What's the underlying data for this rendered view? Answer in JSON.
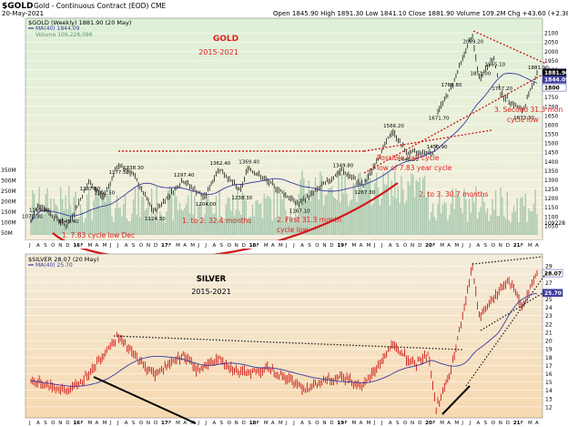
{
  "header": {
    "symbol": "$GOLD",
    "title_rest": "Gold - Continuous Contract (EOD)  CME",
    "date": "20-May-2021",
    "ohlc": "Open 1845.90  High 1891.30  Low 1841.10  Close 1881.90  Volume 109.2M  Chg +43.60 (+2.38%)",
    "legend_main": "$GOLD (Weekly) 1881.90 (20 May)",
    "legend_ma": "MA(40) 1844.09",
    "legend_vol": "Volume 109,228,096",
    "legend_silver": "$SILVER 28.07 (20 May)",
    "legend_silver_ma": "MA(40) 25.70"
  },
  "colors": {
    "gold_bg_top": "#e0efd8",
    "gold_bg_bottom": "#f6eedc",
    "silver_bg_top": "#f2ecd9",
    "silver_bg_bottom": "#f8d9b0",
    "price": "#000000",
    "ma": "#3a3aa0",
    "volume": "#a9c9b0",
    "annotation": "#e02020",
    "trend": "#cc0000"
  },
  "chart_data": [
    {
      "type": "line",
      "name": "gold_weekly",
      "title": "GOLD",
      "subtitle": "2015-2021",
      "ylim": [
        1000,
        2150
      ],
      "y_ticks": [
        1050,
        1100,
        1150,
        1200,
        1250,
        1300,
        1350,
        1400,
        1450,
        1500,
        1550,
        1600,
        1650,
        1700,
        1750,
        1800,
        1850,
        1900,
        1950,
        2000,
        2050,
        2100
      ],
      "right_price_labels": [
        "1881.90",
        "1844.09",
        "1800"
      ],
      "vol_axis_labels": [
        "350M",
        "300M",
        "250M",
        "200M",
        "150M",
        "100M",
        "50M"
      ],
      "vol_right_label": "109228",
      "x_month_labels": [
        "J",
        "A",
        "S",
        "O",
        "N",
        "D",
        "16",
        "F",
        "M",
        "A",
        "M",
        "J",
        "J",
        "A",
        "S",
        "O",
        "N",
        "D",
        "17",
        "F",
        "M",
        "A",
        "M",
        "J",
        "J",
        "A",
        "S",
        "O",
        "N",
        "D",
        "18",
        "F",
        "M",
        "A",
        "M",
        "J",
        "J",
        "A",
        "S",
        "O",
        "N",
        "D",
        "19",
        "F",
        "M",
        "A",
        "M",
        "J",
        "J",
        "A",
        "S",
        "O",
        "N",
        "D",
        "20",
        "F",
        "M",
        "A",
        "M",
        "J",
        "J",
        "A",
        "S",
        "O",
        "N",
        "D",
        "21",
        "F",
        "M",
        "A"
      ],
      "key_points": [
        {
          "x": "2015-07",
          "y": 1072.3,
          "label": "1072.30"
        },
        {
          "x": "2015-08",
          "y": 1169.8,
          "label": "1169.80"
        },
        {
          "x": "2015-12",
          "y": 1045.4,
          "label": "1045.40"
        },
        {
          "x": "2016-03",
          "y": 1287.8,
          "label": "1287.80"
        },
        {
          "x": "2016-05",
          "y": 1201.5,
          "label": "1201.50"
        },
        {
          "x": "2016-07",
          "y": 1377.5,
          "label": "1377.50"
        },
        {
          "x": "2016-09",
          "y": 1338.3,
          "label": "1338.30"
        },
        {
          "x": "2016-12",
          "y": 1124.3,
          "label": "1124.30"
        },
        {
          "x": "2017-04",
          "y": 1297.4,
          "label": "1297.40"
        },
        {
          "x": "2017-07",
          "y": 1204.0,
          "label": "1204.00"
        },
        {
          "x": "2017-09",
          "y": 1362.4,
          "label": "1362.40"
        },
        {
          "x": "2017-12",
          "y": 1238.3,
          "label": "1238.30"
        },
        {
          "x": "2018-01",
          "y": 1369.4,
          "label": "1369.40"
        },
        {
          "x": "2018-08",
          "y": 1167.1,
          "label": "1167.10"
        },
        {
          "x": "2019-02",
          "y": 1349.8,
          "label": "1349.80"
        },
        {
          "x": "2019-05",
          "y": 1267.3,
          "label": "1267.30"
        },
        {
          "x": "2019-09",
          "y": 1566.2,
          "label": "1566.20"
        },
        {
          "x": "2019-11",
          "y": 1446.2,
          "label": "1446.20"
        },
        {
          "x": "2020-03",
          "y": 1450.9,
          "label": "1450.90"
        },
        {
          "x": "2020-03",
          "y": 1671.7,
          "label": "1671.70"
        },
        {
          "x": "2020-05",
          "y": 1788.8,
          "label": "1788.80"
        },
        {
          "x": "2020-08",
          "y": 2089.2,
          "label": "2089.20"
        },
        {
          "x": "2020-09",
          "y": 1851.0,
          "label": "1851.00"
        },
        {
          "x": "2020-11",
          "y": 1965.1,
          "label": "1965.10"
        },
        {
          "x": "2020-12",
          "y": 1767.2,
          "label": "1767.20"
        },
        {
          "x": "2021-03",
          "y": 1673.3,
          "label": "1673.30"
        },
        {
          "x": "2021-05",
          "y": 1881.9,
          "label": "1881.90"
        }
      ],
      "annotations": [
        {
          "text": "1. 7.83 cycle low Dec"
        },
        {
          "text": "2015"
        },
        {
          "text": "1. to 2. 32.4 months"
        },
        {
          "text": "2. First 31.3 month"
        },
        {
          "text": "cycle low"
        },
        {
          "text": "Possible half cycle"
        },
        {
          "text": "low of 7.83 year cycle"
        },
        {
          "text": "2. to 3. 30.7 months"
        },
        {
          "text": "3. Second 31.3 mon"
        },
        {
          "text": "cycle low"
        }
      ]
    },
    {
      "type": "line",
      "name": "silver_weekly",
      "title": "SILVER",
      "subtitle": "2015-2021",
      "ylim": [
        11,
        30
      ],
      "y_ticks": [
        12,
        13,
        14,
        15,
        16,
        17,
        18,
        19,
        20,
        21,
        22,
        23,
        24,
        25,
        26,
        27,
        28,
        29
      ],
      "right_price_labels": [
        "28.07",
        "25.70"
      ],
      "x_month_labels": [
        "J",
        "A",
        "S",
        "O",
        "N",
        "D",
        "16",
        "F",
        "M",
        "A",
        "M",
        "J",
        "J",
        "A",
        "S",
        "O",
        "N",
        "D",
        "17",
        "F",
        "M",
        "A",
        "M",
        "J",
        "J",
        "A",
        "S",
        "O",
        "N",
        "D",
        "18",
        "F",
        "M",
        "A",
        "M",
        "J",
        "J",
        "A",
        "S",
        "O",
        "N",
        "D",
        "19",
        "F",
        "M",
        "A",
        "M",
        "J",
        "J",
        "A",
        "S",
        "O",
        "N",
        "D",
        "20",
        "F",
        "M",
        "A",
        "M",
        "J",
        "J",
        "A",
        "S",
        "O",
        "N",
        "D",
        "21",
        "F",
        "M",
        "A"
      ]
    }
  ]
}
